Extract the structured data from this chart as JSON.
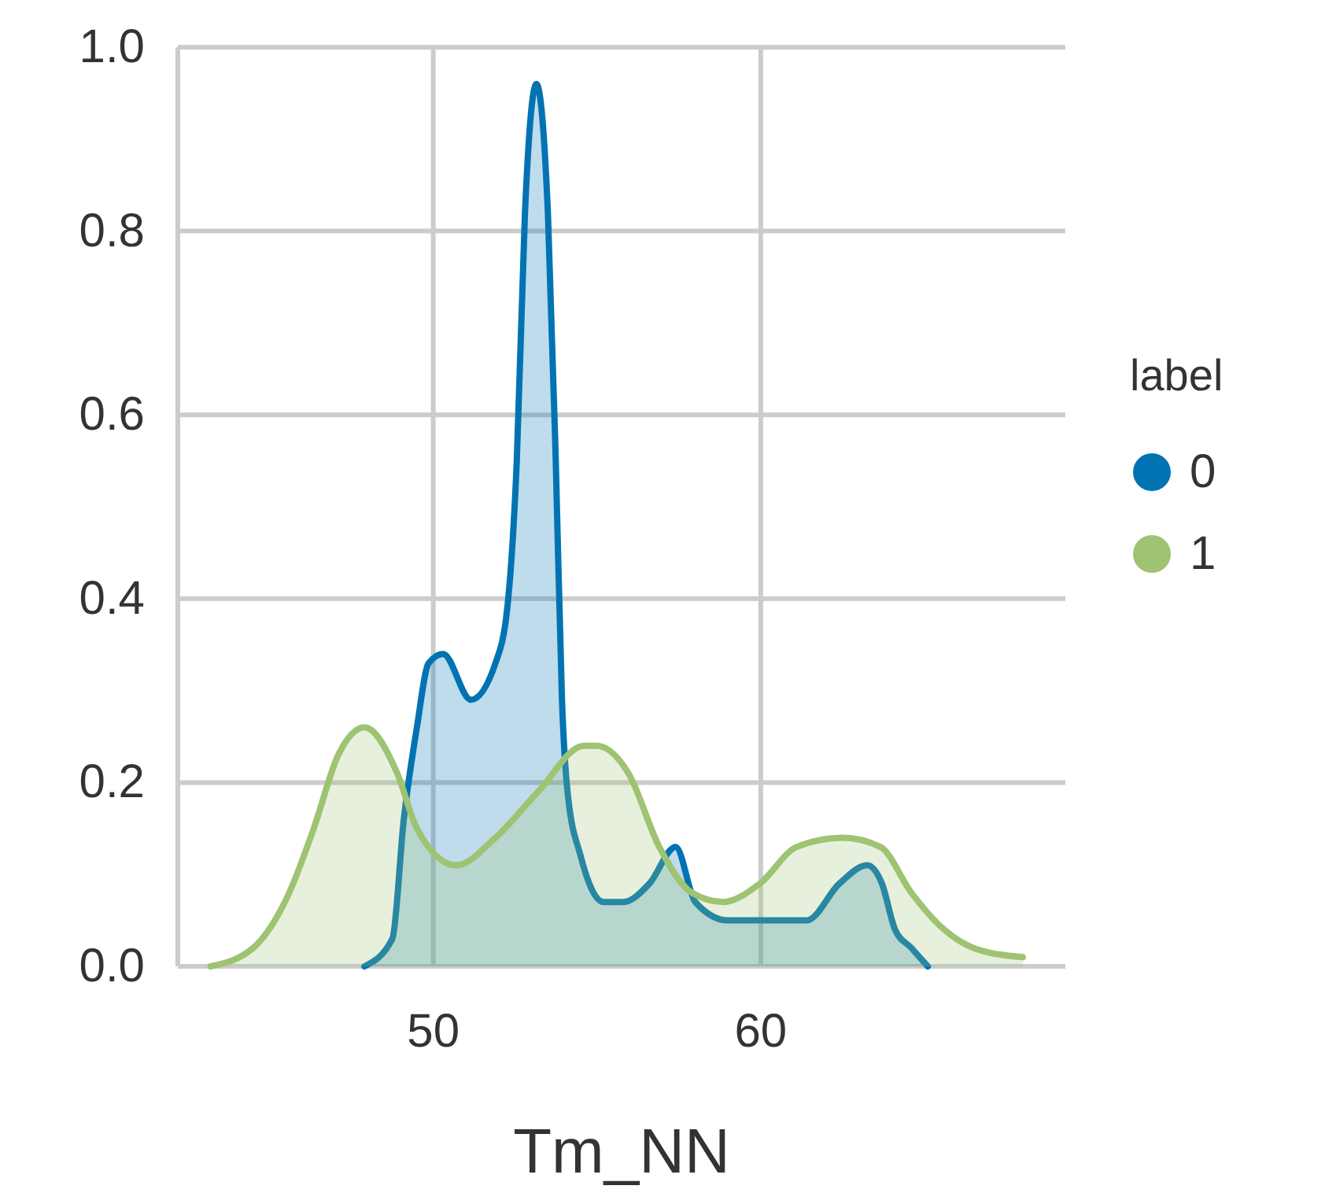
{
  "chart_data": {
    "type": "area",
    "xlabel": "Tm_NN",
    "legend_title": "label",
    "legend": "right",
    "grid": true,
    "xlim": [
      42.2,
      69.3
    ],
    "ylim": [
      0,
      1
    ],
    "xticks": [
      50,
      60
    ],
    "yticks": [
      {
        "value": 0,
        "label": "0.0"
      },
      0.2,
      0.4,
      0.6,
      0.8,
      {
        "value": 1,
        "label": "1.0"
      }
    ],
    "series": [
      {
        "name": "0",
        "color": "#0173b2",
        "x": [
          47.9,
          48.75,
          49.1,
          49.5,
          49.86,
          50.3,
          51.15,
          51.9,
          52.26,
          52.55,
          52.8,
          53.15,
          53.5,
          53.74,
          53.93,
          54.1,
          54.5,
          55.2,
          55.8,
          56.6,
          57.4,
          58.0,
          59.0,
          59.95,
          61.4,
          62.4,
          63.25,
          63.7,
          64.1,
          64.6,
          65.1
        ],
        "values": [
          0,
          0.03,
          0.16,
          0.26,
          0.33,
          0.34,
          0.29,
          0.33,
          0.39,
          0.55,
          0.82,
          0.96,
          0.82,
          0.55,
          0.29,
          0.19,
          0.12,
          0.07,
          0.07,
          0.09,
          0.13,
          0.07,
          0.05,
          0.05,
          0.05,
          0.09,
          0.11,
          0.09,
          0.04,
          0.02,
          0
        ]
      },
      {
        "name": "1",
        "color": "#9ec372",
        "x": [
          43.2,
          44.5,
          45.6,
          46.35,
          47.1,
          47.9,
          48.9,
          49.5,
          50.7,
          51.9,
          53.2,
          54.6,
          55.0,
          55.96,
          56.9,
          57.9,
          58.85,
          59.97,
          61.1,
          62.5,
          63.65,
          64.6,
          65.6,
          66.5,
          68.0
        ],
        "values": [
          0,
          0.02,
          0.08,
          0.15,
          0.23,
          0.26,
          0.21,
          0.15,
          0.11,
          0.14,
          0.19,
          0.24,
          0.24,
          0.21,
          0.13,
          0.08,
          0.07,
          0.09,
          0.13,
          0.14,
          0.13,
          0.08,
          0.04,
          0.02,
          0.01
        ]
      }
    ]
  }
}
